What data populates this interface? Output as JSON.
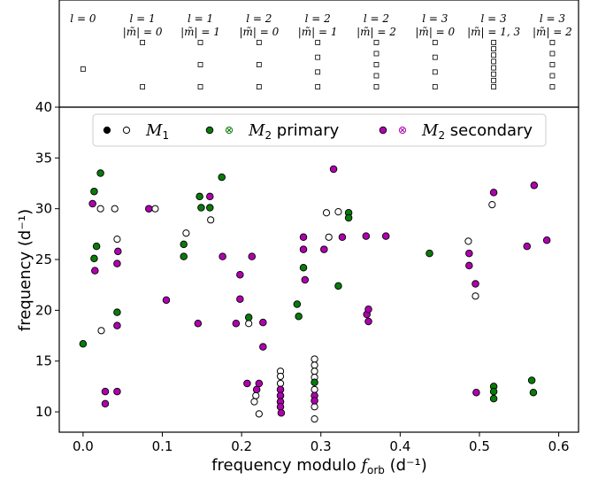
{
  "chart_data": {
    "type": "scatter",
    "xlabel": "frequency modulo f_orb  (d⁻¹)",
    "ylabel": "frequency (d⁻¹)",
    "xlim": [
      -0.03,
      0.625
    ],
    "ylim": [
      8,
      40
    ],
    "xticks": [
      0.0,
      0.1,
      0.2,
      0.3,
      0.4,
      0.5,
      0.6
    ],
    "yticks": [
      10,
      15,
      20,
      25,
      30,
      35,
      40
    ],
    "xtick_labels": [
      "0.0",
      "0.1",
      "0.2",
      "0.3",
      "0.4",
      "0.5",
      "0.6"
    ],
    "ytick_labels": [
      "10",
      "15",
      "20",
      "25",
      "30",
      "35",
      "40"
    ],
    "grid": false,
    "legend_position": "top",
    "legend": [
      {
        "label": "M₁",
        "markers": [
          "filled-black",
          "open-black"
        ]
      },
      {
        "label": "M₂ primary",
        "markers": [
          "x-green",
          "xo-green"
        ]
      },
      {
        "label": "M₂ secondary",
        "markers": [
          "x-magenta",
          "xo-magenta"
        ]
      }
    ],
    "mode_panel": [
      {
        "l": "l = 0",
        "m": "",
        "x": 0.0,
        "count": 1
      },
      {
        "l": "l = 1",
        "m": "|m̃| = 0",
        "x": 0.075,
        "count": 2
      },
      {
        "l": "l = 1",
        "m": "|m̃| = 1",
        "x": 0.148,
        "count": 3
      },
      {
        "l": "l = 2",
        "m": "|m̃| = 0",
        "x": 0.222,
        "count": 3
      },
      {
        "l": "l = 2",
        "m": "|m̃| = 1",
        "x": 0.296,
        "count": 4
      },
      {
        "l": "l = 2",
        "m": "|m̃| = 2",
        "x": 0.37,
        "count": 5
      },
      {
        "l": "l = 3",
        "m": "|m̃| = 0",
        "x": 0.444,
        "count": 4
      },
      {
        "l": "l = 3",
        "m": "|m̃| = 1, 3",
        "x": 0.518,
        "count": 8
      },
      {
        "l": "l = 3",
        "m": "|m̃| = 2",
        "x": 0.592,
        "count": 5
      }
    ],
    "series": [
      {
        "name": "M₁ (filled)",
        "style": "filled-black",
        "points": []
      },
      {
        "name": "M₁ (open)",
        "style": "open-black",
        "points": [
          [
            0.022,
            30.0
          ],
          [
            0.04,
            30.0
          ],
          [
            0.043,
            27.0
          ],
          [
            0.023,
            18.0
          ],
          [
            0.091,
            30.0
          ],
          [
            0.13,
            27.6
          ],
          [
            0.161,
            28.9
          ],
          [
            0.209,
            18.7
          ],
          [
            0.218,
            11.6
          ],
          [
            0.222,
            9.8
          ],
          [
            0.216,
            11.0
          ],
          [
            0.249,
            14.0
          ],
          [
            0.249,
            13.5
          ],
          [
            0.249,
            12.8
          ],
          [
            0.249,
            12.2
          ],
          [
            0.249,
            11.6
          ],
          [
            0.249,
            11.0
          ],
          [
            0.292,
            15.2
          ],
          [
            0.292,
            14.6
          ],
          [
            0.292,
            14.0
          ],
          [
            0.292,
            13.4
          ],
          [
            0.292,
            12.2
          ],
          [
            0.292,
            9.3
          ],
          [
            0.292,
            10.5
          ],
          [
            0.31,
            27.2
          ],
          [
            0.322,
            29.7
          ],
          [
            0.307,
            29.6
          ],
          [
            0.486,
            26.8
          ],
          [
            0.495,
            21.4
          ],
          [
            0.516,
            30.4
          ]
        ]
      },
      {
        "name": "M₂ primary",
        "style": "x-green",
        "points": [
          [
            0.0,
            16.7
          ],
          [
            0.014,
            25.1
          ],
          [
            0.014,
            31.7
          ],
          [
            0.022,
            33.5
          ],
          [
            0.017,
            26.3
          ],
          [
            0.043,
            19.8
          ],
          [
            0.127,
            26.5
          ],
          [
            0.127,
            25.3
          ],
          [
            0.147,
            31.2
          ],
          [
            0.149,
            30.1
          ],
          [
            0.16,
            30.1
          ],
          [
            0.175,
            33.1
          ],
          [
            0.209,
            19.3
          ],
          [
            0.27,
            20.6
          ],
          [
            0.272,
            19.4
          ],
          [
            0.278,
            24.2
          ],
          [
            0.292,
            12.9
          ],
          [
            0.322,
            22.4
          ],
          [
            0.335,
            29.6
          ],
          [
            0.335,
            29.1
          ],
          [
            0.437,
            25.6
          ],
          [
            0.518,
            12.5
          ],
          [
            0.518,
            12.0
          ],
          [
            0.518,
            11.3
          ],
          [
            0.566,
            13.1
          ],
          [
            0.568,
            11.9
          ]
        ]
      },
      {
        "name": "M₂ secondary",
        "style": "x-magenta",
        "points": [
          [
            0.012,
            30.5
          ],
          [
            0.015,
            23.9
          ],
          [
            0.028,
            12.0
          ],
          [
            0.028,
            10.8
          ],
          [
            0.043,
            12.0
          ],
          [
            0.043,
            18.5
          ],
          [
            0.043,
            24.6
          ],
          [
            0.044,
            25.8
          ],
          [
            0.083,
            30.0
          ],
          [
            0.105,
            21.0
          ],
          [
            0.145,
            18.7
          ],
          [
            0.16,
            31.2
          ],
          [
            0.176,
            25.3
          ],
          [
            0.193,
            18.7
          ],
          [
            0.198,
            23.5
          ],
          [
            0.198,
            21.1
          ],
          [
            0.207,
            12.8
          ],
          [
            0.213,
            25.3
          ],
          [
            0.219,
            12.2
          ],
          [
            0.222,
            12.8
          ],
          [
            0.227,
            18.8
          ],
          [
            0.227,
            16.4
          ],
          [
            0.249,
            12.2
          ],
          [
            0.249,
            11.6
          ],
          [
            0.249,
            11.0
          ],
          [
            0.249,
            10.5
          ],
          [
            0.25,
            9.9
          ],
          [
            0.278,
            27.2
          ],
          [
            0.278,
            26.0
          ],
          [
            0.28,
            23.0
          ],
          [
            0.292,
            11.6
          ],
          [
            0.292,
            11.1
          ],
          [
            0.304,
            26.0
          ],
          [
            0.316,
            33.9
          ],
          [
            0.327,
            27.2
          ],
          [
            0.357,
            27.3
          ],
          [
            0.358,
            19.6
          ],
          [
            0.36,
            20.1
          ],
          [
            0.36,
            18.9
          ],
          [
            0.382,
            27.3
          ],
          [
            0.487,
            25.6
          ],
          [
            0.487,
            24.4
          ],
          [
            0.495,
            22.6
          ],
          [
            0.496,
            11.9
          ],
          [
            0.518,
            31.6
          ],
          [
            0.56,
            26.3
          ],
          [
            0.569,
            32.3
          ],
          [
            0.585,
            26.9
          ]
        ]
      }
    ]
  }
}
